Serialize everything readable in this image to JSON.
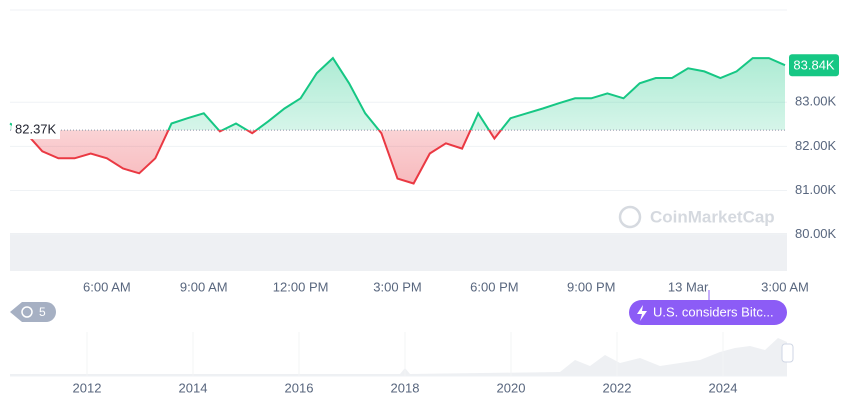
{
  "chart_data": {
    "type": "line",
    "categories": [
      null,
      null,
      null,
      null,
      null,
      null,
      "6:00 AM",
      null,
      null,
      null,
      null,
      null,
      "9:00 AM",
      null,
      null,
      null,
      null,
      null,
      "12:00 PM",
      null,
      null,
      null,
      null,
      null,
      "3:00 PM",
      null,
      null,
      null,
      null,
      null,
      "6:00 PM",
      null,
      null,
      null,
      null,
      null,
      "9:00 PM",
      null,
      null,
      null,
      null,
      null,
      "13 Mar",
      null,
      null,
      null,
      null,
      null,
      "3:00 AM"
    ],
    "values": [
      82.52,
      82.3,
      81.89,
      81.73,
      81.73,
      81.84,
      81.73,
      81.5,
      81.39,
      81.73,
      82.52,
      82.64,
      82.75,
      82.34,
      82.52,
      82.3,
      82.57,
      82.86,
      83.09,
      83.66,
      84.0,
      83.43,
      82.75,
      82.3,
      81.27,
      81.16,
      81.84,
      82.07,
      81.95,
      82.75,
      82.18,
      82.64,
      82.75,
      82.86,
      82.98,
      83.09,
      83.09,
      83.2,
      83.09,
      83.43,
      83.55,
      83.55,
      83.77,
      83.7,
      83.55,
      83.7,
      84.0,
      84.0,
      83.84
    ],
    "ylim": [
      79.2,
      85.0
    ],
    "yticks": [
      {
        "value": 80,
        "label": "80.00K"
      },
      {
        "value": 81,
        "label": "81.00K"
      },
      {
        "value": 82,
        "label": "82.00K"
      },
      {
        "value": 83,
        "label": "83.00K"
      }
    ],
    "reference": {
      "value": 82.37,
      "label": "82.37K"
    },
    "last": {
      "value": 83.84,
      "label": "83.84K"
    },
    "colors": {
      "above": "#16c784",
      "below": "#ea3943"
    },
    "grid": true
  },
  "watermark": "CoinMarketCap",
  "history_badge": 5,
  "event_label": "U.S. considers Bitc...",
  "navigator": {
    "years": [
      "2012",
      "2014",
      "2016",
      "2018",
      "2020",
      "2022",
      "2024"
    ]
  }
}
